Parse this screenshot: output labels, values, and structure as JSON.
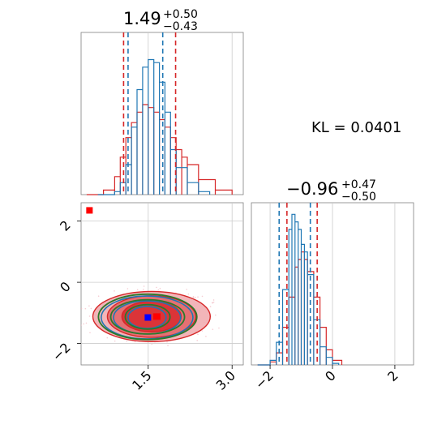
{
  "chart_data": {
    "type": "corner",
    "annotation": "KL = 0.0401",
    "colors": {
      "red": "#d62728",
      "blue": "#1f77b4",
      "green": "#2a7a2a",
      "square_red": "#ff0000",
      "square_blue": "#0000ff"
    },
    "params": [
      {
        "title_value": "1.49",
        "title_plus": "+0.50",
        "title_minus": "−0.43"
      },
      {
        "title_value": "−0.96",
        "title_plus": "+0.47",
        "title_minus": "−0.50"
      }
    ],
    "hist_top": {
      "xlim": [
        0.3,
        3.2
      ],
      "red_lines": [
        1.06,
        1.99
      ],
      "blue_lines": [
        1.14,
        1.76
      ],
      "blue_series": {
        "x": [
          0.6,
          0.9,
          1.0,
          1.1,
          1.2,
          1.3,
          1.4,
          1.5,
          1.6,
          1.7,
          1.8,
          1.9,
          2.0,
          2.2,
          2.4,
          2.6
        ],
        "y": [
          0,
          2,
          8,
          20,
          45,
          70,
          85,
          90,
          88,
          75,
          55,
          30,
          18,
          8,
          2,
          0
        ]
      },
      "red_series": {
        "x": [
          0.4,
          0.7,
          0.9,
          1.0,
          1.1,
          1.2,
          1.3,
          1.4,
          1.5,
          1.6,
          1.7,
          1.8,
          1.9,
          2.0,
          2.1,
          2.2,
          2.4,
          2.7,
          3.0
        ],
        "y": [
          0,
          3,
          12,
          25,
          38,
          48,
          55,
          60,
          58,
          55,
          50,
          45,
          38,
          30,
          25,
          20,
          10,
          3,
          0
        ]
      }
    },
    "hist_right": {
      "xlim": [
        -2.6,
        2.6
      ],
      "xticks": [
        "−2",
        "0",
        "2"
      ],
      "red_lines": [
        -1.46,
        -0.49
      ],
      "blue_lines": [
        -1.71,
        -0.71
      ],
      "blue_series": {
        "x": [
          -2.4,
          -2.0,
          -1.8,
          -1.6,
          -1.4,
          -1.3,
          -1.2,
          -1.1,
          -1.0,
          -0.9,
          -0.8,
          -0.6,
          -0.4,
          -0.2,
          0.0,
          0.2
        ],
        "y": [
          0,
          3,
          15,
          50,
          90,
          100,
          95,
          90,
          80,
          75,
          60,
          30,
          12,
          5,
          1,
          0
        ]
      },
      "red_series": {
        "x": [
          -2.4,
          -2.0,
          -1.8,
          -1.6,
          -1.4,
          -1.2,
          -1.1,
          -1.0,
          -0.9,
          -0.8,
          -0.6,
          -0.4,
          -0.2,
          0.0,
          0.3
        ],
        "y": [
          0,
          2,
          8,
          25,
          45,
          65,
          70,
          75,
          70,
          62,
          45,
          25,
          10,
          3,
          0
        ]
      }
    },
    "scatter_2d": {
      "xlim": [
        0.3,
        3.2
      ],
      "ylim": [
        -2.7,
        2.6
      ],
      "xticks": [
        "1.5",
        "3.0"
      ],
      "yticks": [
        "2",
        "0",
        "−2"
      ],
      "red_marker": [
        0.45,
        2.35
      ],
      "centers": {
        "red": [
          1.56,
          -1.12
        ],
        "blue": [
          1.48,
          -1.15
        ],
        "green": [
          1.49,
          -1.13
        ]
      },
      "contours": [
        {
          "series": "red_fill",
          "radii": [
            [
              1.05,
              0.82
            ],
            [
              0.79,
              0.68
            ],
            [
              0.53,
              0.5
            ]
          ]
        },
        {
          "series": "blue",
          "radii": [
            [
              0.82,
              0.7
            ],
            [
              0.6,
              0.54
            ],
            [
              0.34,
              0.36
            ]
          ]
        },
        {
          "series": "green",
          "radii": [
            [
              0.88,
              0.74
            ],
            [
              0.66,
              0.56
            ],
            [
              0.4,
              0.4
            ]
          ]
        }
      ]
    }
  }
}
